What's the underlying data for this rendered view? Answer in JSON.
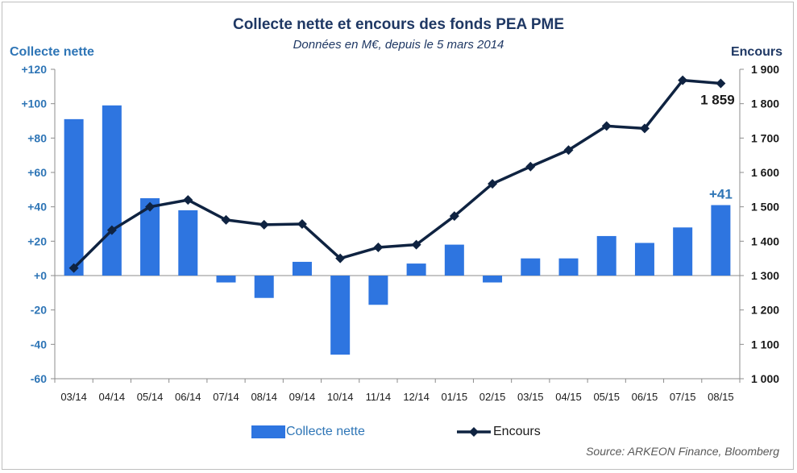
{
  "chart_data": {
    "type": "bar+line",
    "title": "Collecte nette et encours des fonds PEA PME",
    "subtitle": "Données en M€, depuis le 5 mars 2014",
    "ylabel_left": "Collecte nette",
    "ylabel_right": "Encours",
    "categories": [
      "03/14",
      "04/14",
      "05/14",
      "06/14",
      "07/14",
      "08/14",
      "09/14",
      "10/14",
      "11/14",
      "12/14",
      "01/15",
      "02/15",
      "03/15",
      "04/15",
      "05/15",
      "06/15",
      "07/15",
      "08/15"
    ],
    "series": [
      {
        "name": "Collecte nette",
        "type": "bar",
        "axis": "left",
        "color": "#2e75e0",
        "values": [
          91,
          99,
          45,
          38,
          -4,
          -13,
          8,
          -46,
          -17,
          7,
          18,
          -4,
          10,
          10,
          23,
          19,
          28,
          41
        ]
      },
      {
        "name": "Encours",
        "type": "line",
        "axis": "right",
        "color": "#0f2341",
        "values": [
          1322,
          1432,
          1500,
          1520,
          1462,
          1448,
          1450,
          1350,
          1382,
          1390,
          1473,
          1567,
          1617,
          1665,
          1735,
          1728,
          1868,
          1859
        ]
      }
    ],
    "ylim_left": [
      -60,
      120
    ],
    "yticks_left": [
      "-60",
      "-40",
      "-20",
      "+0",
      "+20",
      "+40",
      "+60",
      "+80",
      "+100",
      "+120"
    ],
    "ylim_right": [
      1000,
      1900
    ],
    "yticks_right": [
      "1 000",
      "1 100",
      "1 200",
      "1 300",
      "1 400",
      "1 500",
      "1 600",
      "1 700",
      "1 800",
      "1 900"
    ],
    "annotations": [
      {
        "series": "Collecte nette",
        "index": 17,
        "text": "+41"
      },
      {
        "series": "Encours",
        "index": 17,
        "text": "1 859"
      }
    ],
    "legend_position": "bottom",
    "grid": false
  },
  "legend": {
    "bar_label": "Collecte nette",
    "line_label": "Encours"
  },
  "source": "Source: ARKEON Finance, Bloomberg"
}
